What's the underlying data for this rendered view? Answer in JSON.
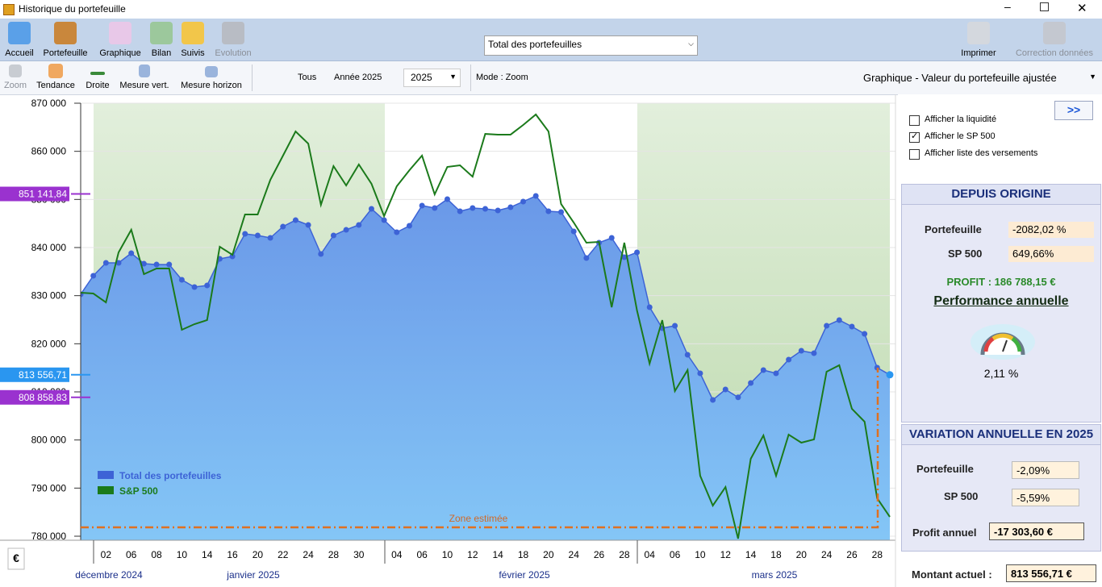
{
  "window": {
    "title": "Historique du portefeuille"
  },
  "toolbar": {
    "buttons": [
      "Accueil",
      "Portefeuille",
      "Graphique",
      "Bilan",
      "Suivis",
      "Evolution"
    ],
    "portfolio_select": "Total des portefeuilles",
    "right_buttons": [
      "Imprimer",
      "Correction données"
    ]
  },
  "toolbar2": {
    "tools": [
      "Zoom",
      "Tendance",
      "Droite",
      "Mesure vert.",
      "Mesure horizon"
    ],
    "period": [
      "Tous",
      "Année 2025"
    ],
    "year": "2025",
    "mode": "Mode : Zoom",
    "view": "Graphique - Valeur du portefeuille ajustée"
  },
  "chart_data": {
    "type": "line",
    "unit": "€",
    "categories": [
      null,
      null,
      "02",
      null,
      "06",
      null,
      "08",
      null,
      "10",
      null,
      "14",
      null,
      "16",
      null,
      "20",
      null,
      "22",
      null,
      "24",
      null,
      "28",
      null,
      "30",
      null,
      null,
      "04",
      null,
      "06",
      null,
      "10",
      null,
      "12",
      null,
      "14",
      null,
      "18",
      null,
      "20",
      null,
      "24",
      null,
      "26",
      null,
      "28",
      null,
      "04",
      null,
      "06",
      null,
      "10",
      null,
      "12",
      null,
      "14",
      null,
      "18",
      null,
      "20",
      null,
      "24",
      null,
      "26",
      null,
      "28",
      null
    ],
    "months": [
      "décembre 2024",
      "janvier 2025",
      "février 2025",
      "mars 2025"
    ],
    "series": [
      {
        "name": "Total des portefeuilles",
        "color": "#3d63d6",
        "values": [
          830280,
          834130,
          836810,
          836810,
          838820,
          836640,
          836470,
          836470,
          833290,
          831790,
          832120,
          837650,
          838150,
          842850,
          842510,
          842010,
          844350,
          845690,
          844690,
          838660,
          842510,
          843680,
          844690,
          848040,
          845690,
          843180,
          844520,
          848710,
          848210,
          850050,
          847540,
          848210,
          848040,
          847710,
          848380,
          849550,
          850720,
          847540,
          847370,
          843350,
          837820,
          841010,
          842010,
          837990,
          838990,
          827600,
          823240,
          823740,
          817710,
          813850,
          808320,
          810500,
          808858.83,
          811840,
          814520,
          813850,
          816700,
          818550,
          818040,
          823740,
          824910,
          823570,
          822060,
          815030,
          813556.71
        ]
      },
      {
        "name": "S&P 500",
        "color": "#1b7a1b",
        "values": [
          830610,
          830440,
          828600,
          838990,
          843680,
          834470,
          835640,
          835640,
          822900,
          824070,
          824910,
          840160,
          838490,
          846870,
          846870,
          854070,
          859100,
          864130,
          861610,
          848880,
          856920,
          852900,
          857260,
          853240,
          846540,
          852730,
          856080,
          859100,
          851060,
          856760,
          857090,
          854740,
          863620,
          863460,
          863460,
          865470,
          867650,
          864130,
          849050,
          845190,
          841010,
          841170,
          827600,
          841010,
          826930,
          815870,
          824910,
          810170,
          814520,
          792570,
          786370,
          790220,
          779500,
          796090,
          800950,
          792570,
          801120,
          799440,
          800110,
          814190,
          815530,
          806480,
          803800,
          787880,
          784020
        ]
      }
    ],
    "ylim": [
      780000,
      870000
    ],
    "yticks": [
      {
        "value": 780000,
        "label": "780 000"
      },
      {
        "value": 790000,
        "label": "790 000"
      },
      {
        "value": 800000,
        "label": "800 000"
      },
      {
        "value": 810000,
        "label": "810 000"
      },
      {
        "value": 820000,
        "label": "820 000"
      },
      {
        "value": 830000,
        "label": "830 000"
      },
      {
        "value": 840000,
        "label": "840 000"
      },
      {
        "value": 850000,
        "label": "850 000"
      },
      {
        "value": 860000,
        "label": "860 000"
      },
      {
        "value": 870000,
        "label": "870 000"
      }
    ],
    "markers": [
      {
        "value": 851141.84,
        "label": "851 141,84",
        "color": "#9a32cf"
      },
      {
        "value": 813556.71,
        "label": "813 556,71",
        "color": "#2a96f0"
      },
      {
        "value": 808858.83,
        "label": "808 858,83",
        "color": "#9a32cf"
      }
    ],
    "annotation": "Zone estimée"
  },
  "panel": {
    "expand_button": ">>",
    "checkboxes": [
      {
        "label": "Afficher la liquidité",
        "checked": false
      },
      {
        "label": "Afficher le SP 500",
        "checked": true
      },
      {
        "label": "Afficher liste des versements",
        "checked": false
      }
    ],
    "origin": {
      "title": "DEPUIS ORIGINE",
      "rows": [
        {
          "label": "Portefeuille",
          "value": "-2082,02 %"
        },
        {
          "label": "SP 500",
          "value": "649,66%"
        }
      ],
      "profit": "PROFIT : 186 788,15 €",
      "performance_title": "Performance annuelle",
      "performance": "2,11 %"
    },
    "annual": {
      "title": "VARIATION ANNUELLE EN 2025",
      "rows": [
        {
          "label": "Portefeuille",
          "value": "-2,09%"
        },
        {
          "label": "SP 500",
          "value": "-5,59%"
        },
        {
          "label": "Profit annuel",
          "value": "-17 303,60 €"
        }
      ]
    },
    "current": {
      "label": "Montant actuel :",
      "value": "813 556,71 €"
    }
  }
}
